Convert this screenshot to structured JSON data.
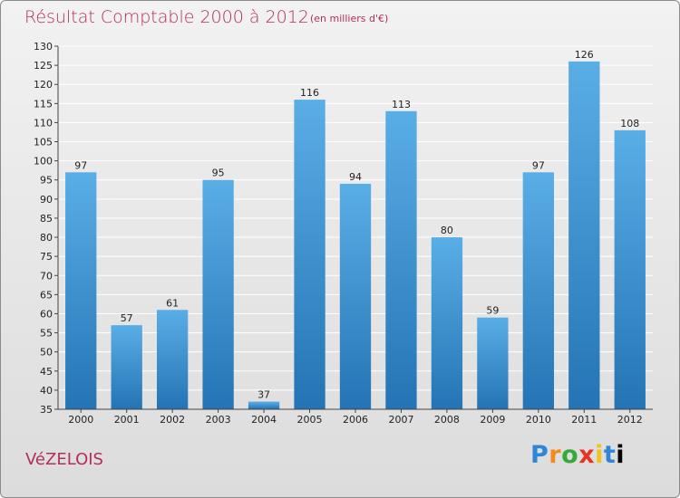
{
  "header": {
    "title": "Résultat Comptable 2000 à 2012",
    "subtitle": "(en milliers d'€)"
  },
  "footer": {
    "commune": "VéZELOIS",
    "logo_letters": [
      "P",
      "r",
      "o",
      "x",
      "i",
      "t",
      "i"
    ]
  },
  "colors": {
    "title": "#b0305a",
    "bar_top": "#5aaee6",
    "bar_bottom": "#2474b5",
    "grid": "#ffffff"
  },
  "chart_data": {
    "type": "bar",
    "title": "Résultat Comptable 2000 à 2012",
    "subtitle": "(en milliers d'€)",
    "categories": [
      "2000",
      "2001",
      "2002",
      "2003",
      "2004",
      "2005",
      "2006",
      "2007",
      "2008",
      "2009",
      "2010",
      "2011",
      "2012"
    ],
    "values": [
      97,
      57,
      61,
      95,
      37,
      116,
      94,
      113,
      80,
      59,
      97,
      126,
      108
    ],
    "ylim": [
      35,
      130
    ],
    "yticks": [
      35,
      40,
      45,
      50,
      55,
      60,
      65,
      70,
      75,
      80,
      85,
      90,
      95,
      100,
      105,
      110,
      115,
      120,
      125,
      130
    ],
    "grid": true,
    "data_labels": true
  }
}
